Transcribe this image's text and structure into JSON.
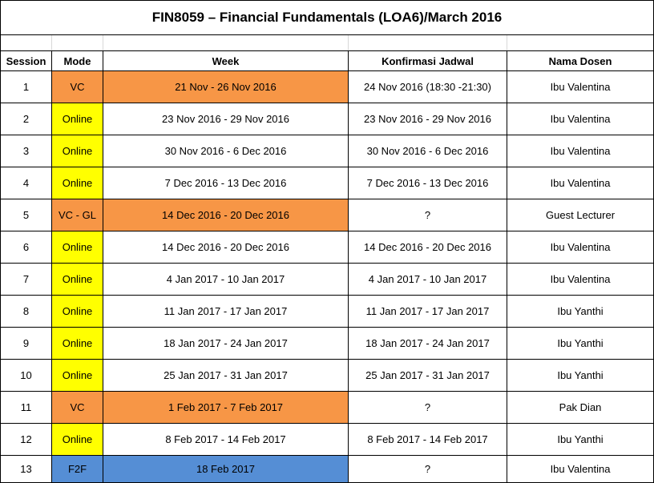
{
  "title": "FIN8059 – Financial Fundamentals (LOA6)/March 2016",
  "headers": {
    "session": "Session",
    "mode": "Mode",
    "week": "Week",
    "konfirmasi": "Konfirmasi Jadwal",
    "dosen": "Nama Dosen"
  },
  "colors": {
    "orange": "#F79646",
    "yellow": "#FFFF00",
    "blue": "#558ED5"
  },
  "rows": [
    {
      "session": "1",
      "mode": "VC",
      "week": "21 Nov - 26 Nov 2016",
      "konfirmasi": "24 Nov 2016 (18:30 -21:30)",
      "dosen": "Ibu Valentina",
      "mode_color": "orange",
      "week_color": "orange"
    },
    {
      "session": "2",
      "mode": "Online",
      "week": "23 Nov 2016 - 29 Nov 2016",
      "konfirmasi": "23 Nov 2016 - 29 Nov 2016",
      "dosen": "Ibu Valentina",
      "mode_color": "yellow",
      "week_color": "none"
    },
    {
      "session": "3",
      "mode": "Online",
      "week": "30 Nov 2016 - 6 Dec 2016",
      "konfirmasi": "30 Nov 2016 - 6 Dec 2016",
      "dosen": "Ibu Valentina",
      "mode_color": "yellow",
      "week_color": "none"
    },
    {
      "session": "4",
      "mode": "Online",
      "week": "7 Dec 2016 - 13 Dec 2016",
      "konfirmasi": "7 Dec 2016 - 13 Dec 2016",
      "dosen": "Ibu Valentina",
      "mode_color": "yellow",
      "week_color": "none"
    },
    {
      "session": "5",
      "mode": "VC - GL",
      "week": "14 Dec 2016 - 20 Dec 2016",
      "konfirmasi": "?",
      "dosen": "Guest Lecturer",
      "mode_color": "orange",
      "week_color": "orange"
    },
    {
      "session": "6",
      "mode": "Online",
      "week": "14 Dec 2016 - 20 Dec 2016",
      "konfirmasi": "14 Dec 2016 - 20 Dec 2016",
      "dosen": "Ibu Valentina",
      "mode_color": "yellow",
      "week_color": "none"
    },
    {
      "session": "7",
      "mode": "Online",
      "week": "4 Jan 2017 - 10 Jan 2017",
      "konfirmasi": "4 Jan 2017 - 10 Jan 2017",
      "dosen": "Ibu Valentina",
      "mode_color": "yellow",
      "week_color": "none"
    },
    {
      "session": "8",
      "mode": "Online",
      "week": "11 Jan 2017 - 17 Jan 2017",
      "konfirmasi": "11 Jan 2017 - 17 Jan 2017",
      "dosen": "Ibu Yanthi",
      "mode_color": "yellow",
      "week_color": "none"
    },
    {
      "session": "9",
      "mode": "Online",
      "week": "18 Jan 2017 - 24 Jan 2017",
      "konfirmasi": "18 Jan 2017 - 24 Jan 2017",
      "dosen": "Ibu Yanthi",
      "mode_color": "yellow",
      "week_color": "none"
    },
    {
      "session": "10",
      "mode": "Online",
      "week": "25 Jan 2017 - 31 Jan 2017",
      "konfirmasi": "25 Jan 2017 - 31 Jan 2017",
      "dosen": "Ibu Yanthi",
      "mode_color": "yellow",
      "week_color": "none"
    },
    {
      "session": "11",
      "mode": "VC",
      "week": "1 Feb 2017 - 7 Feb 2017",
      "konfirmasi": "?",
      "dosen": "Pak Dian",
      "mode_color": "orange",
      "week_color": "orange"
    },
    {
      "session": "12",
      "mode": "Online",
      "week": "8 Feb 2017 - 14 Feb 2017",
      "konfirmasi": "8 Feb 2017 - 14 Feb 2017",
      "dosen": "Ibu Yanthi",
      "mode_color": "yellow",
      "week_color": "none"
    },
    {
      "session": "13",
      "mode": "F2F",
      "week": "18 Feb 2017",
      "konfirmasi": "?",
      "dosen": "Ibu Valentina",
      "mode_color": "blue",
      "week_color": "blue"
    }
  ]
}
